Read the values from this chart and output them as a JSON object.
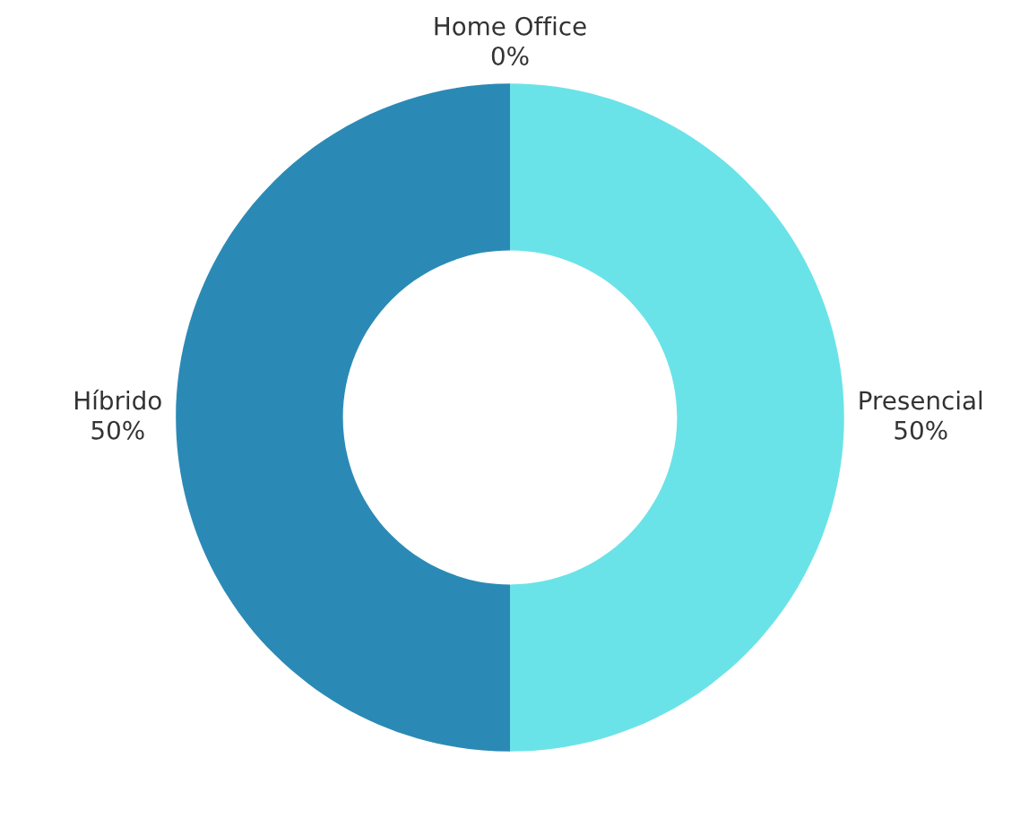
{
  "chart_data": {
    "type": "donut",
    "categories": [
      "Home Office",
      "Presencial",
      "Híbrido"
    ],
    "values": [
      0,
      50,
      50
    ],
    "colors": [
      "#f2a33a",
      "#6ae3e8",
      "#2b8ab5"
    ],
    "value_labels": [
      "0%",
      "50%",
      "50%"
    ],
    "legend": false
  }
}
